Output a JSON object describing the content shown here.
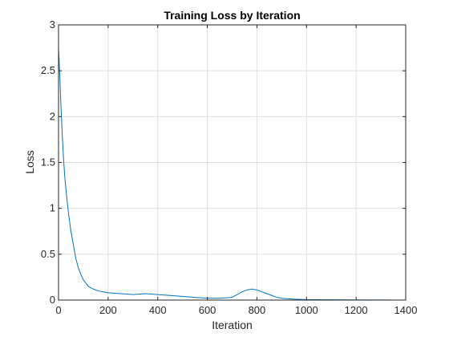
{
  "chart_data": {
    "type": "line",
    "title": "Training Loss by Iteration",
    "xlabel": "Iteration",
    "ylabel": "Loss",
    "xlim": [
      0,
      1400
    ],
    "ylim": [
      0,
      3
    ],
    "xticks": [
      0,
      200,
      400,
      600,
      800,
      1000,
      1200,
      1400
    ],
    "yticks": [
      0,
      0.5,
      1,
      1.5,
      2,
      2.5,
      3
    ],
    "xtick_labels": [
      "0",
      "200",
      "400",
      "600",
      "800",
      "1000",
      "1200",
      "1400"
    ],
    "ytick_labels": [
      "0",
      "0.5",
      "1",
      "1.5",
      "2",
      "2.5",
      "3"
    ],
    "grid": true,
    "series": [
      {
        "color": "#0072BD",
        "x": [
          0,
          5,
          10,
          15,
          20,
          25,
          30,
          40,
          50,
          60,
          70,
          80,
          90,
          100,
          120,
          140,
          160,
          180,
          200,
          250,
          300,
          350,
          400,
          450,
          500,
          550,
          600,
          650,
          700,
          720,
          740,
          760,
          780,
          800,
          820,
          840,
          860,
          880,
          900,
          950,
          1000,
          1100,
          1200,
          1300,
          1340
        ],
        "y": [
          2.75,
          2.45,
          2.1,
          1.8,
          1.55,
          1.35,
          1.2,
          0.95,
          0.75,
          0.6,
          0.45,
          0.35,
          0.28,
          0.22,
          0.15,
          0.12,
          0.1,
          0.09,
          0.08,
          0.07,
          0.06,
          0.07,
          0.06,
          0.05,
          0.04,
          0.03,
          0.02,
          0.02,
          0.03,
          0.06,
          0.09,
          0.11,
          0.12,
          0.11,
          0.09,
          0.07,
          0.05,
          0.03,
          0.02,
          0.01,
          0.005,
          0.003,
          0.002,
          0.001,
          0.001
        ]
      }
    ]
  }
}
